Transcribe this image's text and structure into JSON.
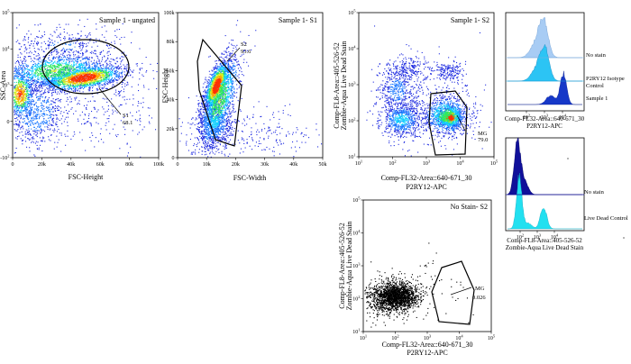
{
  "colors": {
    "density": [
      "#1e2be0",
      "#1a78ff",
      "#12d0ff",
      "#30e860",
      "#d8f020",
      "#ffa800",
      "#ff3000"
    ],
    "dark_navy": "#10109a",
    "light_blue": "#a8ccf4",
    "mid_cyan": "#2cc4f4",
    "deep_blue": "#1638c8",
    "cyan": "#22e0f0",
    "black_dots": "#000000"
  },
  "chart_data": [
    {
      "type": "scatter",
      "style": "density-dot-plot",
      "title": "Sample 1 - ungated",
      "xlabel": "FSC-Height",
      "ylabel": "SSC-Area",
      "x_ticks": [
        "0",
        "20k",
        "40k",
        "60k",
        "80k",
        "100k"
      ],
      "y_ticks": [
        "-10^2",
        "0",
        "10^3",
        "10^4",
        "10^5"
      ],
      "gate": {
        "name": "S1",
        "percent": "68.1",
        "shape": "ellipse"
      }
    },
    {
      "type": "scatter",
      "style": "density-dot-plot",
      "title": "Sample 1- S1",
      "xlabel": "FSC-Width",
      "ylabel": "FSC-Height",
      "x_ticks": [
        "0",
        "10k",
        "20k",
        "30k",
        "40k",
        "50k"
      ],
      "y_ticks": [
        "0",
        "20k",
        "40k",
        "60k",
        "80k",
        "100k"
      ],
      "gate": {
        "name": "S2",
        "percent": "93.6",
        "shape": "polygon"
      }
    },
    {
      "type": "scatter",
      "style": "density-dot-plot",
      "title": "Sample 1- S2",
      "xlabel_lines": [
        "Comp-FL32-Area::640-671_30",
        "P2RY12-APC"
      ],
      "ylabel_lines": [
        "Comp-FL8-Area::405-526-52",
        "Zombie-Aqua Live Dead Stain"
      ],
      "x_ticks": [
        "10^1",
        "10^2",
        "10^3",
        "10^4",
        "10^5"
      ],
      "y_ticks": [
        "10^1",
        "10^2",
        "10^3",
        "10^4",
        "10^5"
      ],
      "gate": {
        "name": "MG",
        "percent": "79.0",
        "shape": "polygon"
      }
    },
    {
      "type": "scatter",
      "style": "black-dot-plot",
      "title": "No Stain- S2",
      "xlabel_lines": [
        "Comp-FL32-Area::640-671_30",
        "P2RY12-APC"
      ],
      "ylabel_lines": [
        "Comp-FL8-Area::405-526-52",
        "Zombie-Aqua Live Dead Stain"
      ],
      "x_ticks": [
        "10^1",
        "10^2",
        "10^3",
        "10^4",
        "10^5"
      ],
      "y_ticks": [
        "10^1",
        "10^2",
        "10^3",
        "10^4",
        "10^5"
      ],
      "gate": {
        "name": "MG",
        "percent": "0.026",
        "shape": "polygon"
      }
    },
    {
      "type": "area",
      "style": "offset-histogram",
      "xlabel_lines": [
        "Comp-FL32-Area::640-671_30",
        "P2RY12-APC"
      ],
      "x_ticks": [
        "10^2",
        "10^3",
        "10^4"
      ],
      "series": [
        {
          "name": "No stain",
          "color": "light_blue"
        },
        {
          "name": "P2RY12 Isotype Control",
          "color": "mid_cyan"
        },
        {
          "name": "Sample 1",
          "color": "deep_blue"
        }
      ]
    },
    {
      "type": "area",
      "style": "offset-histogram",
      "xlabel_lines": [
        "Comp-FL8-Area::405-526-52",
        "Zombie-Aqua Live Dead Stain"
      ],
      "x_ticks": [
        "10^2",
        "10^3",
        "10^4"
      ],
      "series": [
        {
          "name": "No stain",
          "color": "dark_navy"
        },
        {
          "name": "Live Dead Control",
          "color": "cyan"
        }
      ]
    }
  ]
}
